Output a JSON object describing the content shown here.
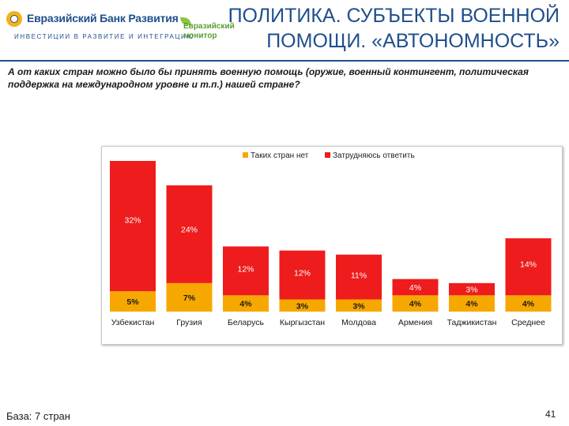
{
  "header": {
    "bank_name": "Евразийский Банк Развития",
    "bank_tagline": "ИНВЕСТИЦИИ В РАЗВИТИЕ И ИНТЕГРАЦИЮ",
    "monitor_line1": "Евразийский",
    "monitor_line2": "монитор",
    "title_line1": "ПОЛИТИКА. СУБЪЕКТЫ ВОЕННОЙ",
    "title_line2": "ПОМОЩИ. «АВТОНОМНОСТЬ»"
  },
  "question": "А от каких стран можно было бы принять военную помощь (оружие, военный контингент, политическая поддержка на международном уровне и т.п.) нашей стране?",
  "footer": {
    "base": "База: 7 стран",
    "page_number": "41"
  },
  "colors": {
    "brand_blue": "#1f4f8c",
    "no_such_countries": "#f7a800",
    "hard_to_say": "#ee1c1c"
  },
  "chart_data": {
    "type": "bar",
    "stacked": true,
    "categories": [
      "Узбекистан",
      "Грузия",
      "Беларусь",
      "Кыргызстан",
      "Молдова",
      "Армения",
      "Таджикистан",
      "Среднее"
    ],
    "series": [
      {
        "name": "Таких стран нет",
        "color": "#f7a800",
        "values": [
          5,
          7,
          4,
          3,
          3,
          4,
          4,
          4
        ],
        "labels": [
          "5%",
          "7%",
          "4%",
          "3%",
          "3%",
          "4%",
          "4%",
          "4%"
        ]
      },
      {
        "name": "Затрудняюсь ответить",
        "color": "#ee1c1c",
        "values": [
          32,
          24,
          12,
          12,
          11,
          4,
          3,
          14
        ],
        "labels": [
          "32%",
          "24%",
          "12%",
          "12%",
          "11%",
          "4%",
          "3%",
          "14%"
        ]
      }
    ],
    "legend_position": "top-center",
    "grid": false,
    "ylim": [
      0,
      37
    ]
  }
}
